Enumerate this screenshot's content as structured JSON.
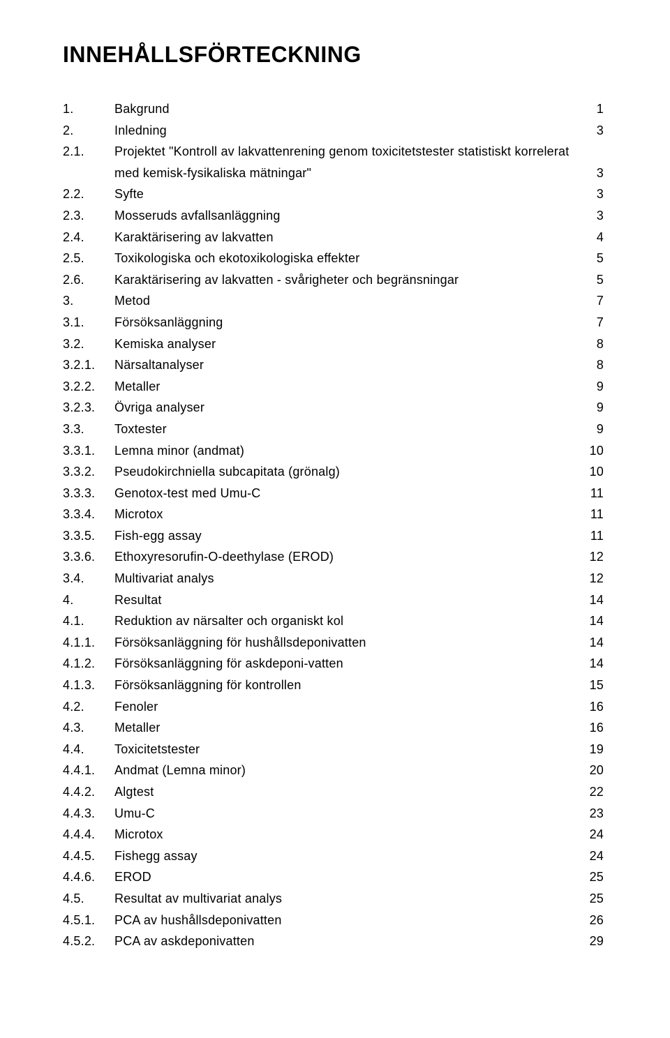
{
  "title": "INNEHÅLLSFÖRTECKNING",
  "toc": [
    {
      "num": "1.",
      "text": "Bakgrund",
      "page": "1"
    },
    {
      "num": "2.",
      "text": "Inledning",
      "page": "3"
    },
    {
      "num": "2.1.",
      "text": "Projektet \"Kontroll av lakvattenrening genom toxicitetstester statistiskt korrelerat",
      "page": ""
    },
    {
      "num": "",
      "text": "med kemisk-fysikaliska mätningar\"",
      "page": "3"
    },
    {
      "num": "2.2.",
      "text": "Syfte",
      "page": "3"
    },
    {
      "num": "2.3.",
      "text": "Mosseruds avfallsanläggning",
      "page": "3"
    },
    {
      "num": "2.4.",
      "text": "Karaktärisering av lakvatten",
      "page": "4"
    },
    {
      "num": "2.5.",
      "text": "Toxikologiska och ekotoxikologiska effekter",
      "page": "5"
    },
    {
      "num": "2.6.",
      "text": "Karaktärisering av lakvatten - svårigheter och begränsningar",
      "page": "5"
    },
    {
      "num": "3.",
      "text": "Metod",
      "page": "7"
    },
    {
      "num": "3.1.",
      "text": "Försöksanläggning",
      "page": "7"
    },
    {
      "num": "3.2.",
      "text": "Kemiska analyser",
      "page": "8"
    },
    {
      "num": "3.2.1.",
      "text": "Närsaltanalyser",
      "page": "8"
    },
    {
      "num": "3.2.2.",
      "text": "Metaller",
      "page": "9"
    },
    {
      "num": "3.2.3.",
      "text": "Övriga analyser",
      "page": "9"
    },
    {
      "num": "3.3.",
      "text": "Toxtester",
      "page": "9"
    },
    {
      "num": "3.3.1.",
      "text": "Lemna minor (andmat)",
      "page": "10"
    },
    {
      "num": "3.3.2.",
      "text": "Pseudokirchniella subcapitata (grönalg)",
      "page": "10"
    },
    {
      "num": "3.3.3.",
      "text": "Genotox-test med Umu-C",
      "page": "11"
    },
    {
      "num": "3.3.4.",
      "text": "Microtox",
      "page": "11"
    },
    {
      "num": "3.3.5.",
      "text": "Fish-egg assay",
      "page": "11"
    },
    {
      "num": "3.3.6.",
      "text": "Ethoxyresorufin-O-deethylase (EROD)",
      "page": "12"
    },
    {
      "num": "3.4.",
      "text": "Multivariat analys",
      "page": "12"
    },
    {
      "num": "4.",
      "text": "Resultat",
      "page": "14"
    },
    {
      "num": "4.1.",
      "text": "Reduktion av närsalter och organiskt kol",
      "page": "14"
    },
    {
      "num": "4.1.1.",
      "text": "Försöksanläggning för hushållsdeponivatten",
      "page": "14"
    },
    {
      "num": "4.1.2.",
      "text": "Försöksanläggning för askdeponi-vatten",
      "page": "14"
    },
    {
      "num": "4.1.3.",
      "text": "Försöksanläggning för kontrollen",
      "page": "15"
    },
    {
      "num": "4.2.",
      "text": "Fenoler",
      "page": "16"
    },
    {
      "num": "4.3.",
      "text": "Metaller",
      "page": "16"
    },
    {
      "num": "4.4.",
      "text": "Toxicitetstester",
      "page": "19"
    },
    {
      "num": "4.4.1.",
      "text": "Andmat (Lemna minor)",
      "page": "20"
    },
    {
      "num": "4.4.2.",
      "text": "Algtest",
      "page": "22"
    },
    {
      "num": "4.4.3.",
      "text": "Umu-C",
      "page": "23"
    },
    {
      "num": "4.4.4.",
      "text": "Microtox",
      "page": "24"
    },
    {
      "num": "4.4.5.",
      "text": "Fishegg assay",
      "page": "24"
    },
    {
      "num": "4.4.6.",
      "text": "EROD",
      "page": "25"
    },
    {
      "num": "4.5.",
      "text": "Resultat av multivariat analys",
      "page": "25"
    },
    {
      "num": "4.5.1.",
      "text": "PCA av hushållsdeponivatten",
      "page": "26"
    },
    {
      "num": "4.5.2.",
      "text": "PCA av askdeponivatten",
      "page": "29"
    }
  ]
}
